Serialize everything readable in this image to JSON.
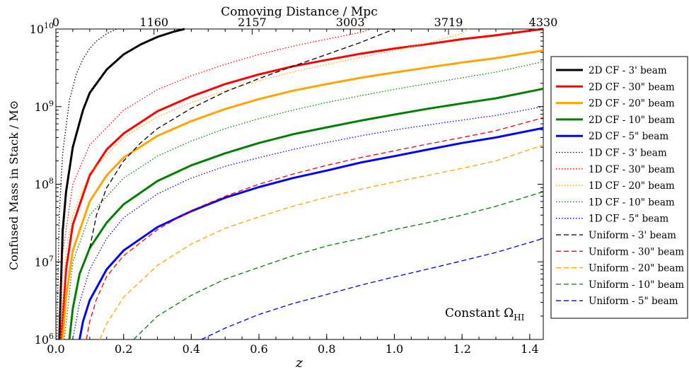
{
  "chart_data": {
    "type": "line",
    "xlabel": "z",
    "ylabel": "Confused Mass in Stack / M⊙",
    "top_xlabel": "Comoving Distance / Mpc",
    "annotation": "Constant Ω",
    "annotation_sub": "HI",
    "xlim": [
      0.0,
      1.44
    ],
    "ylim": [
      1000000,
      10000000000
    ],
    "yscale": "log",
    "grid": false,
    "legend_position": "right-outside",
    "x_ticks": [
      "0.0",
      "0.2",
      "0.4",
      "0.6",
      "0.8",
      "1.0",
      "1.2",
      "1.4"
    ],
    "y_tick_base": "10",
    "y_ticks": [
      "6",
      "7",
      "8",
      "9",
      "10"
    ],
    "top_x_ticks": [
      {
        "z": 0.0,
        "label": "0"
      },
      {
        "z": 0.29,
        "label": "1160"
      },
      {
        "z": 0.58,
        "label": "2157"
      },
      {
        "z": 0.87,
        "label": "3003"
      },
      {
        "z": 1.16,
        "label": "3719"
      },
      {
        "z": 1.44,
        "label": "4330"
      }
    ],
    "series": [
      {
        "name": "2D CF - 3' beam",
        "color": "#000000",
        "style": "solid",
        "x": [
          0.01,
          0.02,
          0.03,
          0.05,
          0.08,
          0.1,
          0.15,
          0.2,
          0.25,
          0.3,
          0.35,
          0.38
        ],
        "y": [
          1000000,
          25000000,
          80000000,
          300000000,
          900000000,
          1500000000,
          3000000000,
          4700000000,
          6300000000,
          7900000000,
          9300000000,
          10000000000
        ]
      },
      {
        "name": "2D CF - 30\" beam",
        "color": "#ff0000",
        "style": "solid",
        "x": [
          0.015,
          0.02,
          0.03,
          0.05,
          0.1,
          0.15,
          0.2,
          0.3,
          0.4,
          0.5,
          0.6,
          0.7,
          0.8,
          0.9,
          1.0,
          1.1,
          1.2,
          1.3,
          1.4,
          1.44
        ],
        "y": [
          1000000,
          2000000,
          8000000,
          30000000,
          130000000,
          280000000,
          450000000,
          870000000,
          1350000000,
          1950000000,
          2600000000,
          3300000000,
          4000000000,
          4800000000,
          5600000000,
          6400000000,
          7400000000,
          8300000000,
          9500000000,
          10000000000
        ]
      },
      {
        "name": "2D CF - 20\" beam",
        "color": "#ffa500",
        "style": "solid",
        "x": [
          0.02,
          0.03,
          0.05,
          0.1,
          0.15,
          0.2,
          0.3,
          0.4,
          0.5,
          0.6,
          0.7,
          0.8,
          0.9,
          1.0,
          1.1,
          1.2,
          1.3,
          1.44
        ],
        "y": [
          1000000,
          3500000,
          14000000,
          60000000,
          130000000,
          220000000,
          420000000,
          650000000,
          930000000,
          1250000000,
          1600000000,
          1950000000,
          2350000000,
          2750000000,
          3200000000,
          3700000000,
          4200000000,
          5300000000
        ]
      },
      {
        "name": "2D CF - 10\" beam",
        "color": "#008000",
        "style": "solid",
        "x": [
          0.04,
          0.05,
          0.07,
          0.1,
          0.15,
          0.2,
          0.3,
          0.4,
          0.5,
          0.6,
          0.7,
          0.8,
          0.9,
          1.0,
          1.1,
          1.2,
          1.3,
          1.44
        ],
        "y": [
          1000000,
          2500000,
          7000000,
          15000000,
          32000000,
          55000000,
          110000000,
          175000000,
          250000000,
          340000000,
          440000000,
          540000000,
          660000000,
          790000000,
          940000000,
          1100000000,
          1280000000,
          1700000000
        ]
      },
      {
        "name": "2D CF - 5\" beam",
        "color": "#0000ff",
        "style": "solid",
        "x": [
          0.07,
          0.08,
          0.1,
          0.15,
          0.2,
          0.3,
          0.4,
          0.5,
          0.6,
          0.7,
          0.8,
          0.9,
          1.0,
          1.1,
          1.2,
          1.3,
          1.44
        ],
        "y": [
          1000000,
          1700000,
          3200000,
          8000000,
          14000000,
          28000000,
          45000000,
          67000000,
          92000000,
          120000000,
          150000000,
          190000000,
          230000000,
          280000000,
          340000000,
          400000000,
          530000000
        ]
      },
      {
        "name": "1D CF - 3' beam",
        "color": "#000000",
        "style": "dotted",
        "x": [
          0.003,
          0.01,
          0.02,
          0.04,
          0.06,
          0.08,
          0.1,
          0.12,
          0.15,
          0.18
        ],
        "y": [
          1000000,
          40000000,
          250000000,
          1200000000,
          2600000000,
          4100000000,
          5600000000,
          7000000000,
          8700000000,
          10000000000
        ]
      },
      {
        "name": "1D CF - 30\" beam",
        "color": "#ff0000",
        "style": "dotted",
        "x": [
          0.01,
          0.02,
          0.05,
          0.1,
          0.2,
          0.3,
          0.4,
          0.5,
          0.6,
          0.7,
          0.8,
          0.9,
          0.93
        ],
        "y": [
          1000000,
          13000000,
          100000000,
          320000000,
          900000000,
          1650000000,
          2500000000,
          3500000000,
          4700000000,
          6000000000,
          7400000000,
          9000000000,
          10000000000
        ]
      },
      {
        "name": "1D CF - 20\" beam",
        "color": "#ffa500",
        "style": "dotted",
        "x": [
          0.015,
          0.03,
          0.05,
          0.1,
          0.2,
          0.3,
          0.4,
          0.5,
          0.6,
          0.7,
          0.8,
          0.9,
          1.0,
          1.1,
          1.2,
          1.22
        ],
        "y": [
          1000000,
          14000000,
          40000000,
          140000000,
          400000000,
          740000000,
          1130000000,
          1600000000,
          2150000000,
          2800000000,
          3500000000,
          4300000000,
          5300000000,
          6600000000,
          8800000000,
          10000000000
        ]
      },
      {
        "name": "1D CF - 10\" beam",
        "color": "#008000",
        "style": "dotted",
        "x": [
          0.025,
          0.05,
          0.1,
          0.2,
          0.3,
          0.4,
          0.5,
          0.6,
          0.7,
          0.8,
          0.9,
          1.0,
          1.1,
          1.2,
          1.3,
          1.44
        ],
        "y": [
          1000000,
          10000000,
          40000000,
          120000000,
          230000000,
          360000000,
          520000000,
          700000000,
          900000000,
          1130000000,
          1380000000,
          1670000000,
          1980000000,
          2350000000,
          2780000000,
          3800000000
        ]
      },
      {
        "name": "1D CF - 5\" beam",
        "color": "#0000ff",
        "style": "dotted",
        "x": [
          0.05,
          0.07,
          0.1,
          0.15,
          0.2,
          0.3,
          0.4,
          0.5,
          0.6,
          0.7,
          0.8,
          0.9,
          1.0,
          1.1,
          1.2,
          1.3,
          1.44
        ],
        "y": [
          1000000,
          3000000,
          8000000,
          20000000,
          37000000,
          75000000,
          120000000,
          170000000,
          220000000,
          280000000,
          345000000,
          420000000,
          500000000,
          580000000,
          670000000,
          770000000,
          1000000000
        ]
      },
      {
        "name": "Uniform - 3' beam",
        "color": "#000000",
        "style": "dashed",
        "x": [
          0.1,
          0.12,
          0.15,
          0.2,
          0.25,
          0.3,
          0.4,
          0.5,
          0.6,
          0.7,
          0.8,
          0.9,
          1.0
        ],
        "y": [
          15000000,
          40000000,
          90000000,
          200000000,
          340000000,
          520000000,
          950000000,
          1550000000,
          2300000000,
          3300000000,
          4700000000,
          6700000000,
          10000000000
        ]
      },
      {
        "name": "Uniform - 30\" beam",
        "color": "#ff0000",
        "style": "dashed",
        "x": [
          0.09,
          0.1,
          0.12,
          0.15,
          0.2,
          0.3,
          0.4,
          0.5,
          0.6,
          0.7,
          0.8,
          0.9,
          1.0,
          1.1,
          1.2,
          1.3,
          1.44
        ],
        "y": [
          1000000,
          1700000,
          3300000,
          6500000,
          12000000,
          26000000,
          46000000,
          70000000,
          100000000,
          135000000,
          175000000,
          220000000,
          270000000,
          330000000,
          400000000,
          490000000,
          720000000
        ]
      },
      {
        "name": "Uniform - 20\" beam",
        "color": "#ffa500",
        "style": "dashed",
        "x": [
          0.13,
          0.15,
          0.2,
          0.3,
          0.4,
          0.5,
          0.6,
          0.7,
          0.8,
          0.9,
          1.0,
          1.1,
          1.2,
          1.3,
          1.44
        ],
        "y": [
          1000000,
          1600000,
          3500000,
          9000000,
          17000000,
          27000000,
          38000000,
          52000000,
          68000000,
          86000000,
          107000000,
          130000000,
          160000000,
          200000000,
          320000000
        ]
      },
      {
        "name": "Uniform - 10\" beam",
        "color": "#008000",
        "style": "dashed",
        "x": [
          0.23,
          0.3,
          0.4,
          0.5,
          0.6,
          0.7,
          0.8,
          0.9,
          1.0,
          1.1,
          1.2,
          1.3,
          1.44
        ],
        "y": [
          1000000,
          2000000,
          3700000,
          6000000,
          8500000,
          12000000,
          16000000,
          20000000,
          26000000,
          32000000,
          40000000,
          52000000,
          80000000
        ]
      },
      {
        "name": "Uniform - 5\" beam",
        "color": "#0000ff",
        "style": "dashed",
        "x": [
          0.43,
          0.5,
          0.6,
          0.7,
          0.8,
          0.9,
          1.0,
          1.1,
          1.2,
          1.3,
          1.44
        ],
        "y": [
          1000000,
          1400000,
          2100000,
          2900000,
          3800000,
          5000000,
          6400000,
          8100000,
          10300000,
          13200000,
          20000000
        ]
      }
    ]
  }
}
